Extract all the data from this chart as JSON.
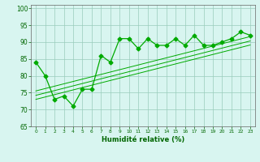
{
  "x": [
    0,
    1,
    2,
    3,
    4,
    5,
    6,
    7,
    8,
    9,
    10,
    11,
    12,
    13,
    14,
    15,
    16,
    17,
    18,
    19,
    20,
    21,
    22,
    23
  ],
  "y_main": [
    84,
    80,
    73,
    74,
    71,
    76,
    76,
    86,
    84,
    91,
    91,
    88,
    91,
    89,
    89,
    91,
    89,
    92,
    89,
    89,
    90,
    91,
    93,
    92
  ],
  "regression1": [
    75.5,
    76.2,
    76.9,
    77.6,
    78.3,
    79.0,
    79.7,
    80.4,
    81.1,
    81.8,
    82.5,
    83.2,
    83.9,
    84.6,
    85.3,
    86.0,
    86.7,
    87.4,
    88.1,
    88.8,
    89.5,
    90.2,
    90.9,
    91.6
  ],
  "regression2": [
    74.2,
    74.9,
    75.6,
    76.3,
    77.0,
    77.7,
    78.4,
    79.1,
    79.8,
    80.5,
    81.2,
    81.9,
    82.6,
    83.3,
    84.0,
    84.7,
    85.4,
    86.1,
    86.8,
    87.5,
    88.2,
    88.9,
    89.6,
    90.3
  ],
  "regression3": [
    73.0,
    73.7,
    74.4,
    75.1,
    75.8,
    76.5,
    77.2,
    77.9,
    78.6,
    79.3,
    80.0,
    80.7,
    81.4,
    82.1,
    82.8,
    83.5,
    84.2,
    84.9,
    85.6,
    86.3,
    87.0,
    87.7,
    88.4,
    89.1
  ],
  "xlim": [
    -0.5,
    23.5
  ],
  "ylim": [
    65,
    101
  ],
  "yticks": [
    65,
    70,
    75,
    80,
    85,
    90,
    95,
    100
  ],
  "xticks": [
    0,
    1,
    2,
    3,
    4,
    5,
    6,
    7,
    8,
    9,
    10,
    11,
    12,
    13,
    14,
    15,
    16,
    17,
    18,
    19,
    20,
    21,
    22,
    23
  ],
  "xlabel": "Humidité relative (%)",
  "line_color": "#00aa00",
  "bg_color": "#d8f5f0",
  "grid_color": "#99ccbb",
  "axis_color": "#666666",
  "text_color": "#006600",
  "marker": "D",
  "markersize": 2.5
}
